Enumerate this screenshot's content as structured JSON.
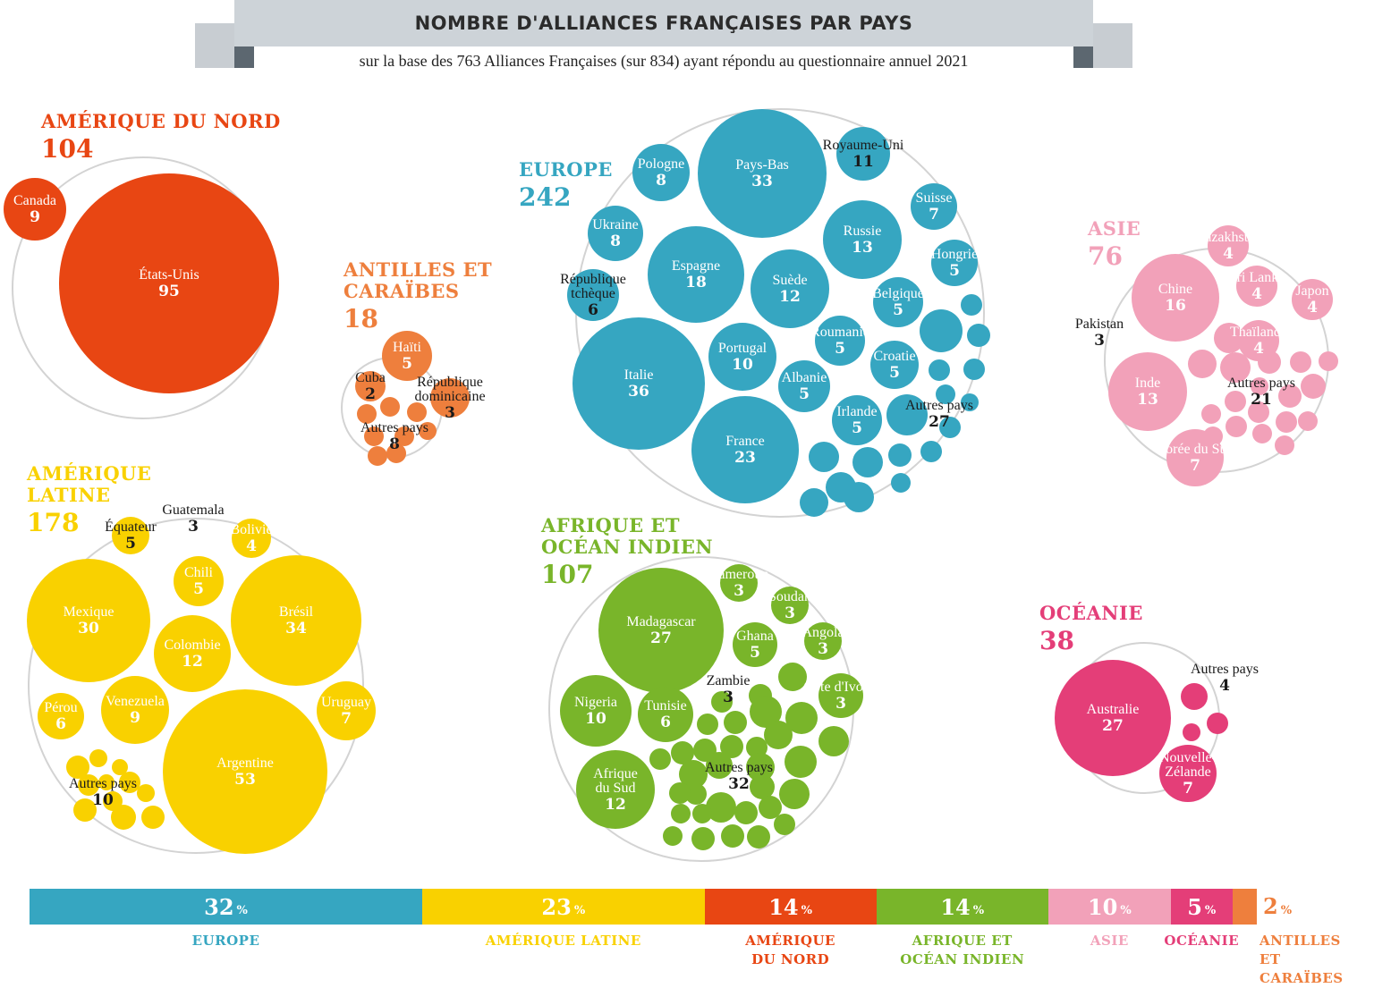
{
  "header": {
    "title": "NOMBRE D'ALLIANCES FRANÇAISES PAR PAYS",
    "subtitle": "sur la base des 763 Alliances Françaises (sur 834) ayant répondu au questionnaire annuel 2021"
  },
  "chart_data": {
    "type": "packed-bubble",
    "title": "NOMBRE D'ALLIANCES FRANÇAISES PAR PAYS",
    "subtitle": "sur la base des 763 Alliances Françaises (sur 834) ayant répondu au questionnaire annuel 2021",
    "regions": [
      {
        "name": "AMÉRIQUE DU NORD",
        "total": "104",
        "color": "#E84613",
        "countries": [
          {
            "name": "Canada",
            "value": 9
          },
          {
            "name": "États-Unis",
            "value": 95
          }
        ]
      },
      {
        "name": "ANTILLES ET\nCARAÏBES",
        "total": "18",
        "color": "#EE7F3D",
        "countries": [
          {
            "name": "Haïti",
            "value": 5
          },
          {
            "name": "Cuba",
            "value": 2
          },
          {
            "name": "République\ndominicaine",
            "value": 3
          },
          {
            "name": "Autres pays",
            "value": 8
          }
        ]
      },
      {
        "name": "EUROPE",
        "total": "242",
        "color": "#36A6C1",
        "countries": [
          {
            "name": "Pays-Bas",
            "value": 33
          },
          {
            "name": "Royaume-Uni",
            "value": 11
          },
          {
            "name": "Pologne",
            "value": 8
          },
          {
            "name": "Suisse",
            "value": 7
          },
          {
            "name": "Ukraine",
            "value": 8
          },
          {
            "name": "Russie",
            "value": 13
          },
          {
            "name": "Espagne",
            "value": 18
          },
          {
            "name": "Hongrie",
            "value": 5
          },
          {
            "name": "Suède",
            "value": 12
          },
          {
            "name": "République\ntchèque",
            "value": 6
          },
          {
            "name": "Belgique",
            "value": 5
          },
          {
            "name": "Roumanie",
            "value": 5
          },
          {
            "name": "Portugal",
            "value": 10
          },
          {
            "name": "Italie",
            "value": 36
          },
          {
            "name": "Croatie",
            "value": 5
          },
          {
            "name": "Albanie",
            "value": 5
          },
          {
            "name": "Irlande",
            "value": 5
          },
          {
            "name": "Autres pays",
            "value": 27
          },
          {
            "name": "France",
            "value": 23
          }
        ]
      },
      {
        "name": "ASIE",
        "total": "76",
        "color": "#F2A1B9",
        "countries": [
          {
            "name": "Kazakhstan",
            "value": 4
          },
          {
            "name": "Chine",
            "value": 16
          },
          {
            "name": "Sri Lanka",
            "value": 4
          },
          {
            "name": "Japon",
            "value": 4
          },
          {
            "name": "Pakistan",
            "value": 3
          },
          {
            "name": "Thaïlande",
            "value": 4
          },
          {
            "name": "Inde",
            "value": 13
          },
          {
            "name": "Autres pays",
            "value": 21
          },
          {
            "name": "Corée du Sud",
            "value": 7
          }
        ]
      },
      {
        "name": "AMÉRIQUE\nLATINE",
        "total": "178",
        "color": "#F9D100",
        "countries": [
          {
            "name": "Guatemala",
            "value": 3
          },
          {
            "name": "Équateur",
            "value": 5
          },
          {
            "name": "Bolivie",
            "value": 4
          },
          {
            "name": "Chili",
            "value": 5
          },
          {
            "name": "Mexique",
            "value": 30
          },
          {
            "name": "Brésil",
            "value": 34
          },
          {
            "name": "Colombie",
            "value": 12
          },
          {
            "name": "Pérou",
            "value": 6
          },
          {
            "name": "Venezuela",
            "value": 9
          },
          {
            "name": "Uruguay",
            "value": 7
          },
          {
            "name": "Argentine",
            "value": 53
          },
          {
            "name": "Autres pays",
            "value": 10
          }
        ]
      },
      {
        "name": "AFRIQUE ET\nOCÉAN INDIEN",
        "total": "107",
        "color": "#79B52A",
        "countries": [
          {
            "name": "Cameroun",
            "value": 3
          },
          {
            "name": "Soudan",
            "value": 3
          },
          {
            "name": "Madagascar",
            "value": 27
          },
          {
            "name": "Angola",
            "value": 3
          },
          {
            "name": "Ghana",
            "value": 5
          },
          {
            "name": "Zambie",
            "value": 3
          },
          {
            "name": "Côte d'Ivoire",
            "value": 3
          },
          {
            "name": "Nigeria",
            "value": 10
          },
          {
            "name": "Tunisie",
            "value": 6
          },
          {
            "name": "Autres pays",
            "value": 32
          },
          {
            "name": "Afrique\ndu Sud",
            "value": 12
          }
        ]
      },
      {
        "name": "OCÉANIE",
        "total": "38",
        "color": "#E43E78",
        "countries": [
          {
            "name": "Autres pays",
            "value": 4
          },
          {
            "name": "Australie",
            "value": 27
          },
          {
            "name": "Nouvelle-\nZélande",
            "value": 7
          }
        ]
      }
    ],
    "share_bar": [
      {
        "label": "EUROPE",
        "value": "32",
        "color": "#36A6C1"
      },
      {
        "label": "AMÉRIQUE LATINE",
        "value": "23",
        "color": "#F9D100"
      },
      {
        "label": "AMÉRIQUE\nDU NORD",
        "value": "14",
        "color": "#E84613"
      },
      {
        "label": "AFRIQUE ET\nOCÉAN INDIEN",
        "value": "14",
        "color": "#79B52A"
      },
      {
        "label": "ASIE",
        "value": "10",
        "color": "#F2A1B9"
      },
      {
        "label": "OCÉANIE",
        "value": "5",
        "color": "#E43E78"
      },
      {
        "label": "ANTILLES ET\nCARAÏBES",
        "value": "2",
        "color": "#EE7F3D"
      }
    ],
    "percent_sign": "%"
  }
}
